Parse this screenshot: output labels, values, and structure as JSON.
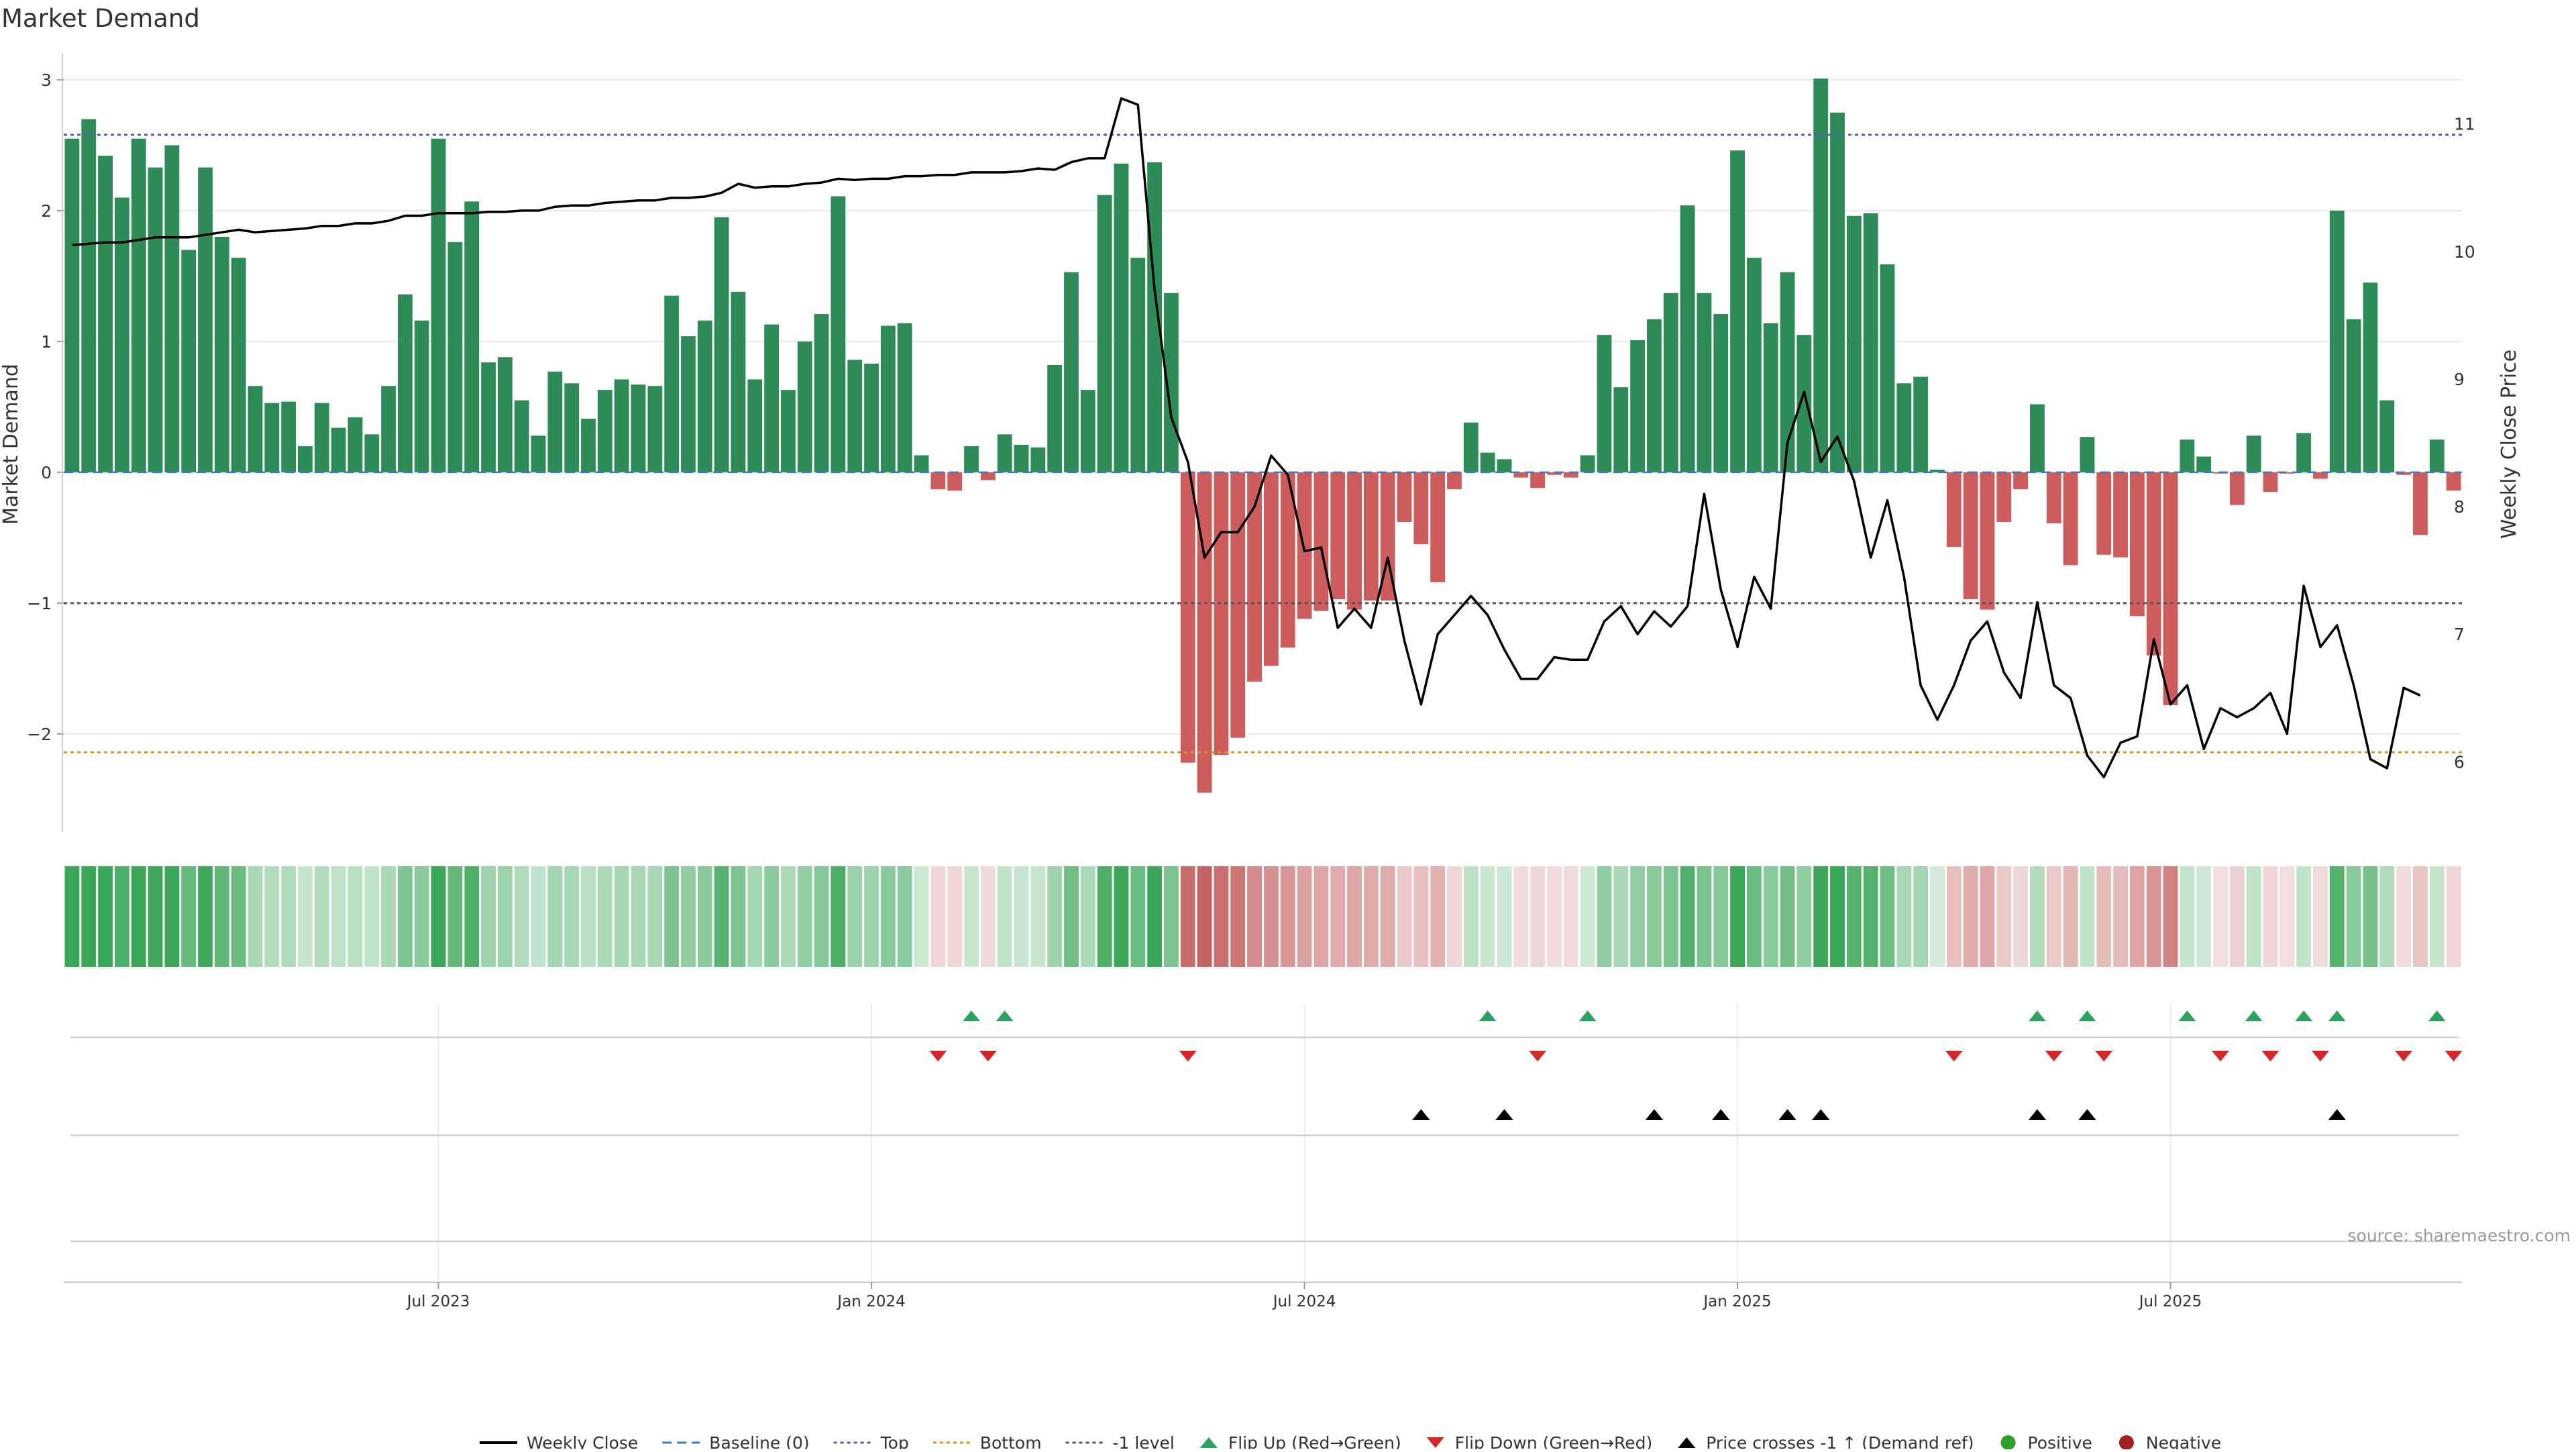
{
  "title": "Market Demand",
  "source": "source: sharemaestro.com",
  "colors": {
    "positive_bar": "#2e8b57",
    "negative_bar": "#cd5c5c",
    "line": "#000000",
    "top_line": "#5b5bb4",
    "bottom_line": "#d4952a",
    "minus1_line": "#555555",
    "baseline": "#3a78c8",
    "flip_up": "#2ca25f",
    "flip_down": "#d62728",
    "cross_marker": "#000000",
    "positive_dot": "#2ca02c",
    "negative_dot": "#a01f1f",
    "grid": "#e8e8e8"
  },
  "chart_data": {
    "type": "bar",
    "title": "Market Demand",
    "ylabel": "Market Demand",
    "y2label": "Weekly Close Price",
    "ylim": [
      -2.75,
      3.2
    ],
    "y2lim": [
      5.45,
      11.55
    ],
    "yticks": [
      3,
      2,
      1,
      0,
      -1,
      -2
    ],
    "ytick_labels": [
      "3",
      "2",
      "1",
      "0",
      "−1",
      "−2"
    ],
    "y2ticks": [
      11,
      10,
      9,
      8,
      7,
      6
    ],
    "y2tick_labels": [
      "11",
      "10",
      "9",
      "8",
      "7",
      "6"
    ],
    "xtick_labels": [
      "Jul 2023",
      "Jan 2024",
      "Jul 2024",
      "Jan 2025",
      "Jul 2025"
    ],
    "xtick_indices": [
      22,
      48,
      74,
      100,
      126
    ],
    "reference_levels": {
      "top": 2.58,
      "bottom": -2.14,
      "minus1": -1,
      "baseline": 0
    },
    "demand": [
      2.55,
      2.7,
      2.42,
      2.1,
      2.55,
      2.33,
      2.5,
      1.7,
      2.33,
      1.8,
      1.64,
      0.66,
      0.53,
      0.54,
      0.2,
      0.53,
      0.34,
      0.42,
      0.29,
      0.66,
      1.36,
      1.16,
      2.55,
      1.76,
      2.07,
      0.84,
      0.88,
      0.55,
      0.28,
      0.77,
      0.68,
      0.41,
      0.63,
      0.71,
      0.67,
      0.66,
      1.35,
      1.04,
      1.16,
      1.95,
      1.38,
      0.71,
      1.13,
      0.63,
      1.0,
      1.21,
      2.11,
      0.86,
      0.83,
      1.12,
      1.14,
      0.13,
      -0.13,
      -0.14,
      0.2,
      -0.06,
      0.29,
      0.21,
      0.19,
      0.82,
      1.53,
      0.63,
      2.12,
      2.36,
      1.64,
      2.37,
      1.37,
      -2.22,
      -2.45,
      -2.16,
      -2.03,
      -1.6,
      -1.48,
      -1.34,
      -1.12,
      -1.06,
      -0.97,
      -1.05,
      -0.98,
      -0.98,
      -0.38,
      -0.55,
      -0.84,
      -0.13,
      0.38,
      0.15,
      0.1,
      -0.04,
      -0.12,
      -0.02,
      -0.04,
      0.13,
      1.05,
      0.65,
      1.01,
      1.17,
      1.37,
      2.04,
      1.37,
      1.21,
      2.46,
      1.64,
      1.14,
      1.53,
      1.05,
      3.01,
      2.75,
      1.96,
      1.98,
      1.59,
      0.68,
      0.73,
      0.02,
      -0.57,
      -0.97,
      -1.05,
      -0.38,
      -0.13,
      0.52,
      -0.39,
      -0.71,
      0.27,
      -0.63,
      -0.65,
      -1.1,
      -1.4,
      -1.78,
      0.25,
      0.12,
      -0.01,
      -0.25,
      0.28,
      -0.15,
      -0.01,
      0.3,
      -0.05,
      2.0,
      1.17,
      1.45,
      0.55,
      -0.02,
      -0.48,
      0.25,
      -0.14
    ],
    "close": [
      10.05,
      10.06,
      10.07,
      10.07,
      10.09,
      10.11,
      10.11,
      10.11,
      10.13,
      10.15,
      10.17,
      10.15,
      10.16,
      10.17,
      10.18,
      10.2,
      10.2,
      10.22,
      10.22,
      10.24,
      10.28,
      10.28,
      10.3,
      10.3,
      10.3,
      10.31,
      10.31,
      10.32,
      10.32,
      10.35,
      10.36,
      10.36,
      10.38,
      10.39,
      10.4,
      10.4,
      10.42,
      10.42,
      10.43,
      10.46,
      10.53,
      10.5,
      10.51,
      10.51,
      10.53,
      10.54,
      10.57,
      10.56,
      10.57,
      10.57,
      10.59,
      10.59,
      10.6,
      10.6,
      10.62,
      10.62,
      10.62,
      10.63,
      10.65,
      10.64,
      10.7,
      10.73,
      10.73,
      11.2,
      11.15,
      9.7,
      8.7,
      8.35,
      7.6,
      7.8,
      7.8,
      8.0,
      8.4,
      8.25,
      7.65,
      7.68,
      7.05,
      7.2,
      7.05,
      7.6,
      6.95,
      6.45,
      7.0,
      7.15,
      7.3,
      7.15,
      6.88,
      6.65,
      6.65,
      6.82,
      6.8,
      6.8,
      7.1,
      7.22,
      7.0,
      7.18,
      7.06,
      7.22,
      8.1,
      7.35,
      6.9,
      7.45,
      7.2,
      8.5,
      8.9,
      8.35,
      8.55,
      8.2,
      7.6,
      8.05,
      7.45,
      6.6,
      6.33,
      6.6,
      6.95,
      7.1,
      6.7,
      6.5,
      7.25,
      6.6,
      6.5,
      6.05,
      5.88,
      6.15,
      6.2,
      6.96,
      6.45,
      6.6,
      6.1,
      6.42,
      6.35,
      6.42,
      6.54,
      6.22,
      7.38,
      6.9,
      7.07,
      6.6,
      6.02,
      5.95,
      6.58,
      6.52
    ],
    "flip_up": [
      54,
      56,
      85,
      91,
      118,
      121,
      127,
      131,
      134,
      136,
      142
    ],
    "flip_down": [
      52,
      55,
      67,
      88,
      113,
      119,
      122,
      129,
      132,
      135,
      140,
      143
    ],
    "price_cross_up": [
      81,
      86,
      95,
      99,
      103,
      105,
      118,
      121,
      136
    ],
    "series_names": [
      "Weekly Close",
      "Baseline (0)",
      "Top",
      "Bottom",
      "-1 level",
      "Flip Up (Red→Green)",
      "Flip Down (Green→Red)",
      "Price crosses -1 ↑ (Demand ref)",
      "Positive",
      "Negative"
    ]
  },
  "legend": [
    {
      "label": "Weekly Close",
      "kind": "line",
      "color": "#000000"
    },
    {
      "label": "Baseline (0)",
      "kind": "dash",
      "color": "#3a78c8"
    },
    {
      "label": "Top",
      "kind": "dot",
      "color": "#5b5bb4"
    },
    {
      "label": "Bottom",
      "kind": "dot",
      "color": "#d4952a"
    },
    {
      "label": "-1 level",
      "kind": "dot",
      "color": "#555555"
    },
    {
      "label": "Flip Up (Red→Green)",
      "kind": "tri-up",
      "color": "#2ca25f"
    },
    {
      "label": "Flip Down (Green→Red)",
      "kind": "tri-down",
      "color": "#d62728"
    },
    {
      "label": "Price crosses -1 ↑ (Demand ref)",
      "kind": "tri-up",
      "color": "#000000"
    },
    {
      "label": "Positive",
      "kind": "circle",
      "color": "#2ca02c"
    },
    {
      "label": "Negative",
      "kind": "circle",
      "color": "#a01f1f"
    }
  ]
}
